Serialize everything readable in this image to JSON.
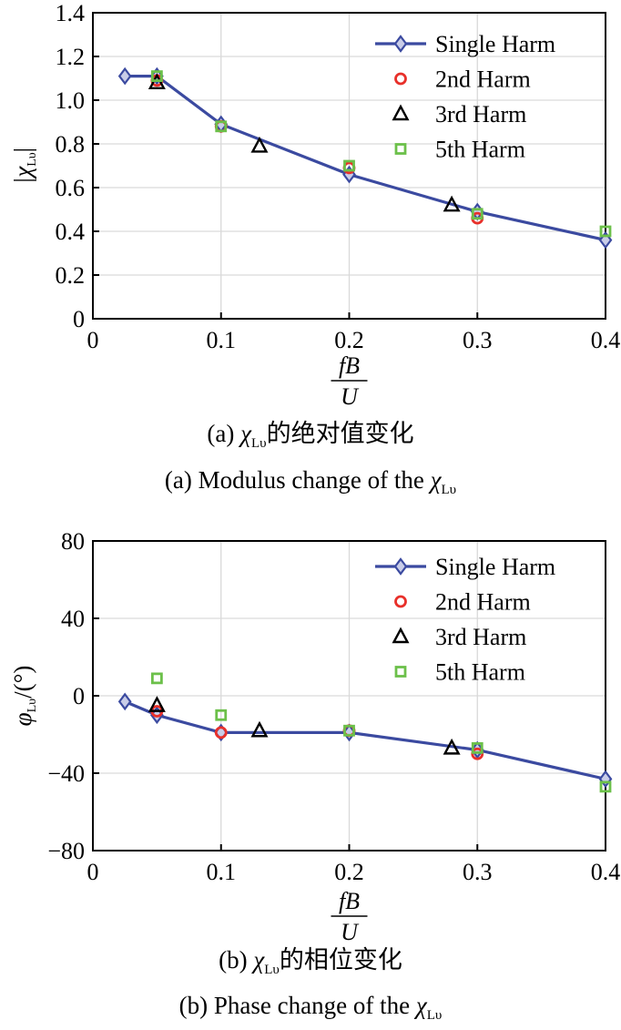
{
  "chart_data": [
    {
      "type": "line",
      "ylabel": "|χLυ|",
      "ylabel_main": "|χ",
      "ylabel_sub": "Lυ",
      "ylabel_end": "|",
      "xlabel_num": "fB",
      "xlabel_den": "U",
      "xlim": [
        0,
        0.4
      ],
      "ylim": [
        0,
        1.4
      ],
      "xticks": [
        "0",
        "0.1",
        "0.2",
        "0.3",
        "0.4"
      ],
      "xtick_values": [
        0,
        0.1,
        0.2,
        0.3,
        0.4
      ],
      "yticks": [
        "0",
        "0.2",
        "0.4",
        "0.6",
        "0.8",
        "1.0",
        "1.2",
        "1.4"
      ],
      "ytick_values": [
        0,
        0.2,
        0.4,
        0.6,
        0.8,
        1.0,
        1.2,
        1.4
      ],
      "grid": true,
      "legend_position": "top-right",
      "caption_cn": {
        "prefix": "(a) ",
        "symbol": "χ",
        "sub": "Lυ",
        "suffix": "的绝对值变化"
      },
      "caption_en": {
        "prefix": "(a) Modulus change of the ",
        "symbol": "χ",
        "sub": "Lυ"
      },
      "series": [
        {
          "name": "Single Harm",
          "marker": "diamond",
          "color": "#3b4aa0",
          "points": [
            [
              0.025,
              1.11
            ],
            [
              0.05,
              1.11
            ],
            [
              0.1,
              0.89
            ],
            [
              0.2,
              0.66
            ],
            [
              0.3,
              0.49
            ],
            [
              0.4,
              0.36
            ]
          ]
        },
        {
          "name": "2nd Harm",
          "marker": "circle",
          "color": "#e8302a",
          "points": [
            [
              0.05,
              1.09
            ],
            [
              0.1,
              0.88
            ],
            [
              0.2,
              0.69
            ],
            [
              0.3,
              0.46
            ]
          ]
        },
        {
          "name": "3rd Harm",
          "marker": "triangle",
          "color": "#000000",
          "points": [
            [
              0.05,
              1.08
            ],
            [
              0.13,
              0.79
            ],
            [
              0.28,
              0.52
            ]
          ]
        },
        {
          "name": "5th Harm",
          "marker": "square",
          "color": "#6cc04a",
          "points": [
            [
              0.05,
              1.11
            ],
            [
              0.1,
              0.88
            ],
            [
              0.2,
              0.7
            ],
            [
              0.3,
              0.48
            ],
            [
              0.4,
              0.4
            ]
          ]
        }
      ]
    },
    {
      "type": "line",
      "ylabel": "φLυ/(°)",
      "ylabel_main": "φ",
      "ylabel_sub": "Lυ",
      "ylabel_end": "/(°)",
      "xlabel_num": "fB",
      "xlabel_den": "U",
      "xlim": [
        0,
        0.4
      ],
      "ylim": [
        -80,
        80
      ],
      "xticks": [
        "0",
        "0.1",
        "0.2",
        "0.3",
        "0.4"
      ],
      "xtick_values": [
        0,
        0.1,
        0.2,
        0.3,
        0.4
      ],
      "yticks": [
        "−80",
        "−40",
        "0",
        "40",
        "80"
      ],
      "ytick_values": [
        -80,
        -40,
        0,
        40,
        80
      ],
      "grid": true,
      "legend_position": "top-right",
      "caption_cn": {
        "prefix": "(b) ",
        "symbol": "χ",
        "sub": "Lυ",
        "suffix": "的相位变化"
      },
      "caption_en": {
        "prefix": "(b) Phase change of the ",
        "symbol": "χ",
        "sub": "Lυ"
      },
      "series": [
        {
          "name": "Single Harm",
          "marker": "diamond",
          "color": "#3b4aa0",
          "points": [
            [
              0.025,
              -3
            ],
            [
              0.05,
              -10
            ],
            [
              0.1,
              -19
            ],
            [
              0.2,
              -19
            ],
            [
              0.3,
              -28
            ],
            [
              0.4,
              -43
            ]
          ]
        },
        {
          "name": "2nd Harm",
          "marker": "circle",
          "color": "#e8302a",
          "points": [
            [
              0.05,
              -8
            ],
            [
              0.1,
              -19
            ],
            [
              0.2,
              -18
            ],
            [
              0.3,
              -30
            ]
          ]
        },
        {
          "name": "3rd Harm",
          "marker": "triangle",
          "color": "#000000",
          "points": [
            [
              0.05,
              -5
            ],
            [
              0.13,
              -18
            ],
            [
              0.28,
              -27
            ]
          ]
        },
        {
          "name": "5th Harm",
          "marker": "square",
          "color": "#6cc04a",
          "points": [
            [
              0.05,
              9
            ],
            [
              0.1,
              -10
            ],
            [
              0.2,
              -18
            ],
            [
              0.3,
              -27
            ],
            [
              0.4,
              -47
            ]
          ]
        }
      ]
    }
  ]
}
